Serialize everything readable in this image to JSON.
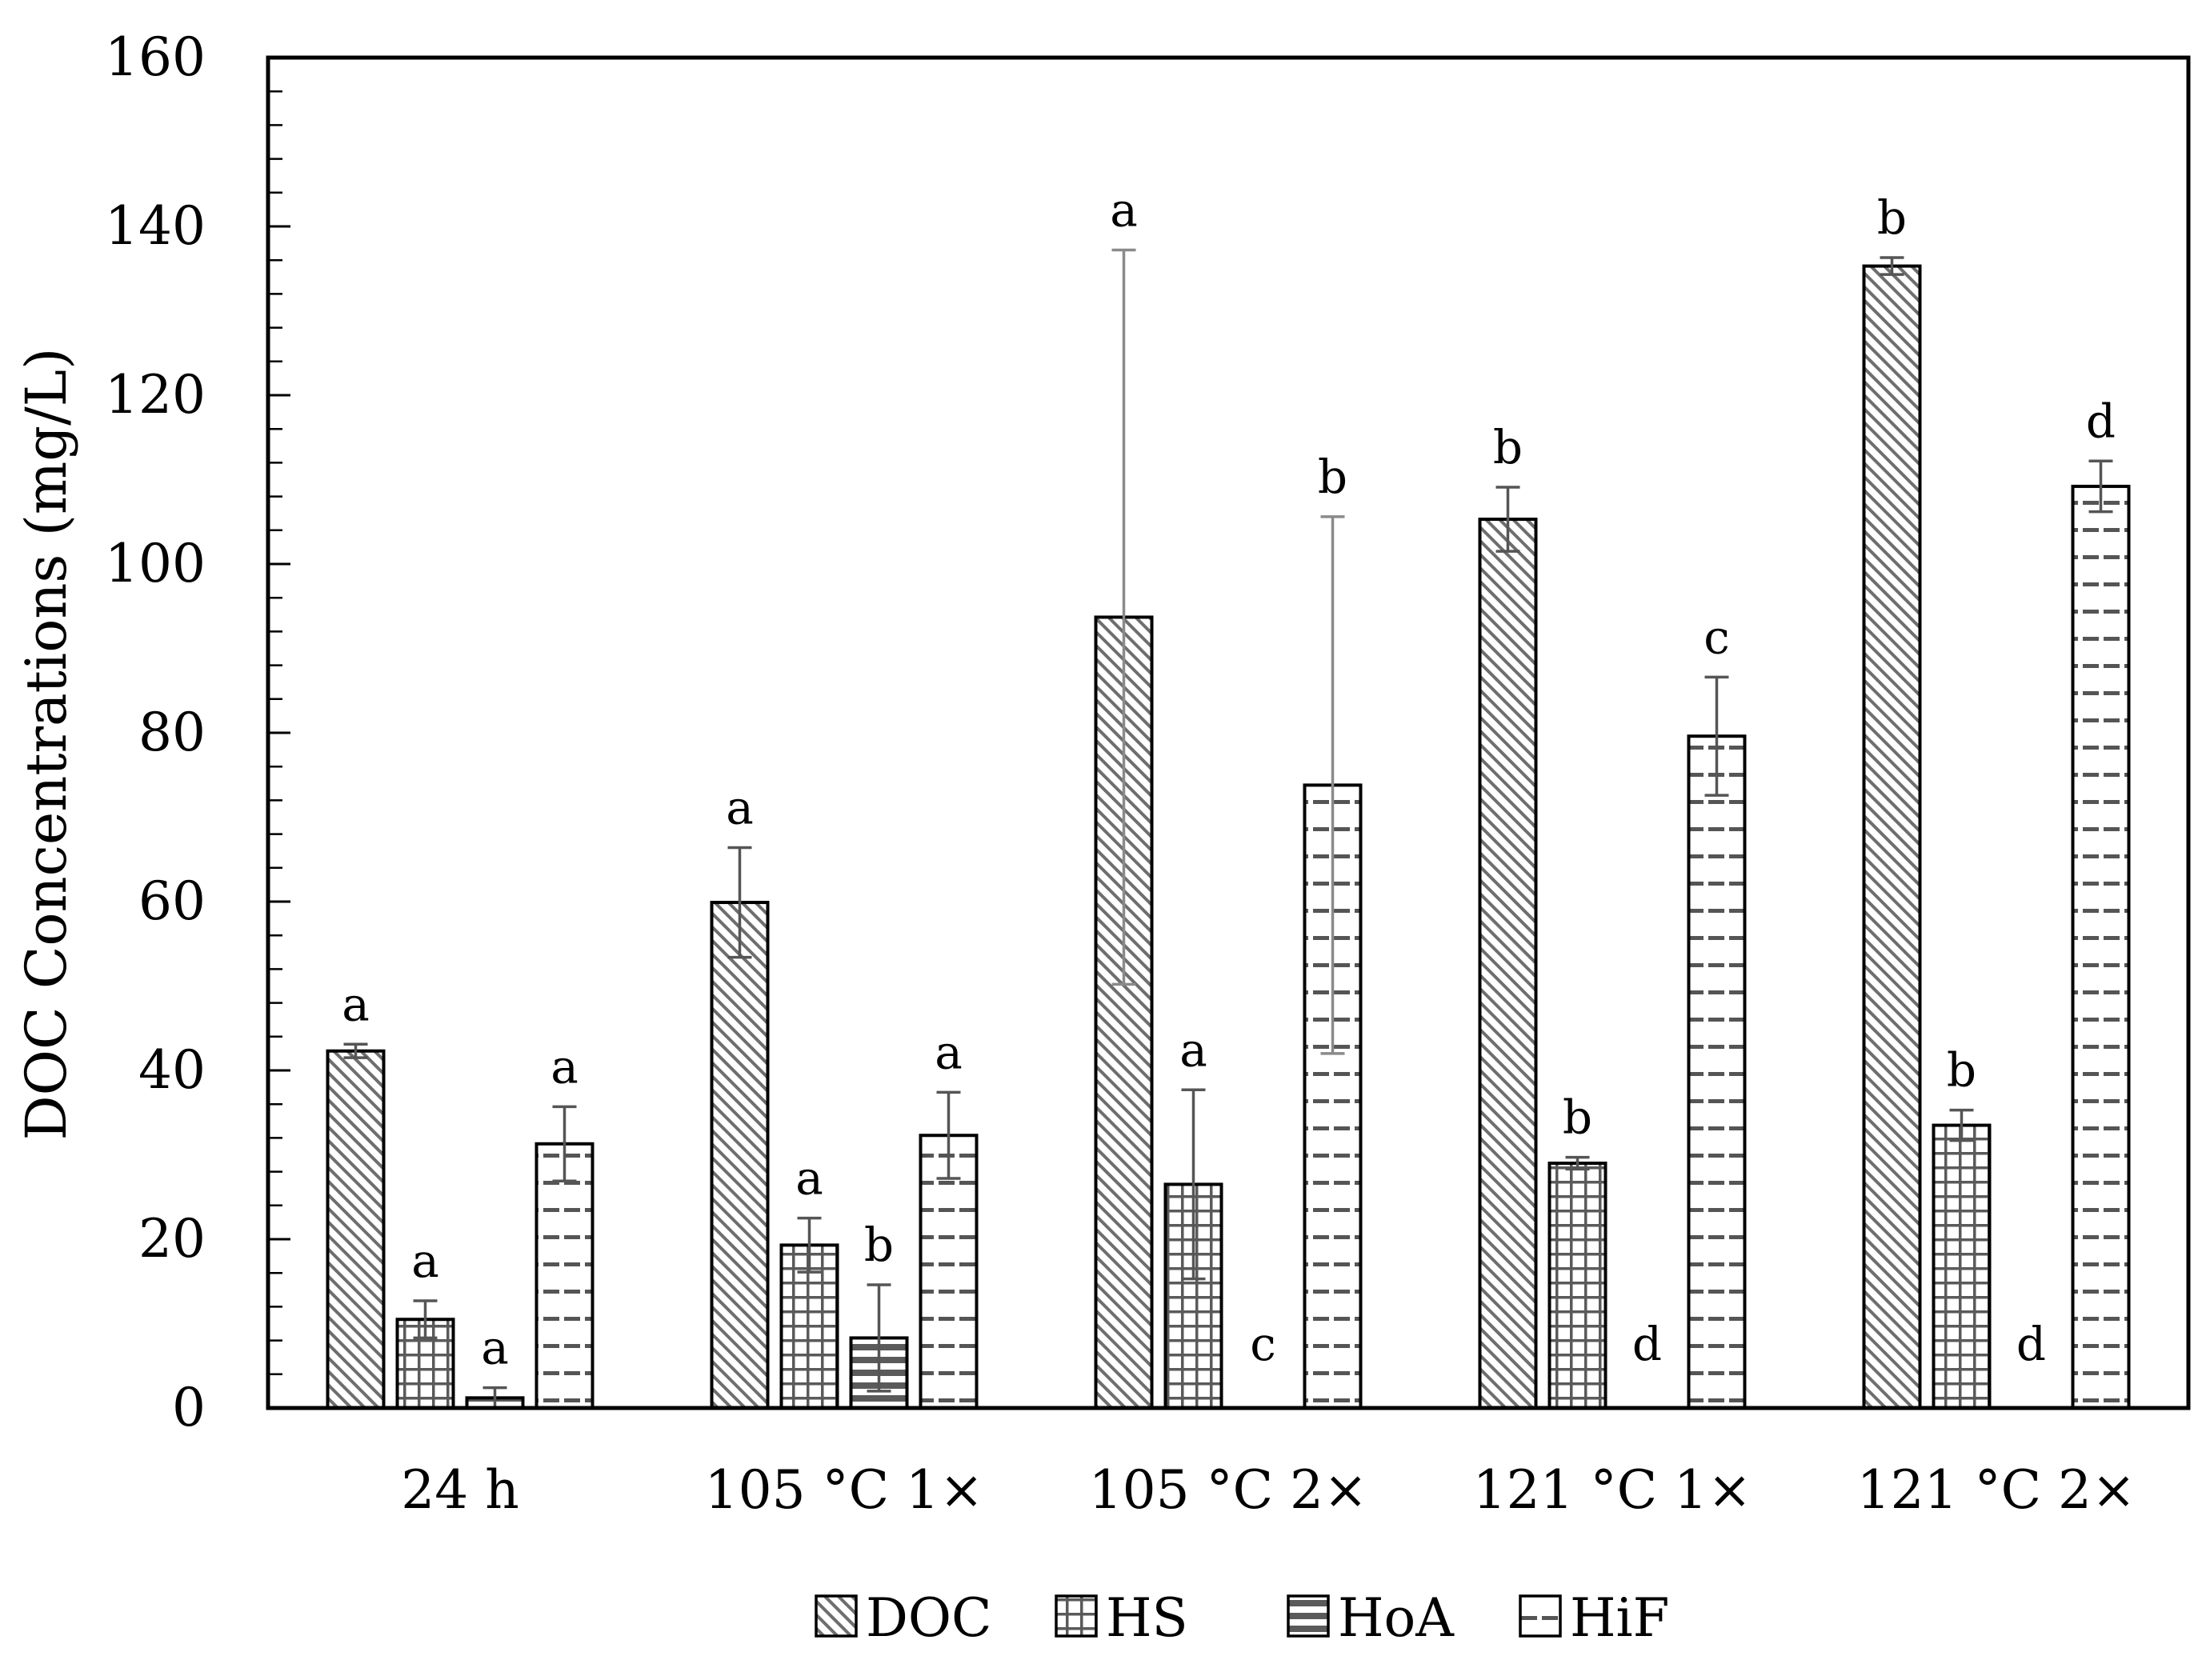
{
  "chart_data": {
    "type": "bar",
    "title": "",
    "xlabel": "",
    "ylabel": "DOC Concentrations (mg/L)",
    "ylim": [
      0,
      160
    ],
    "y_major_step": 20,
    "y_minor_step": 4,
    "grid": false,
    "legend_position": "bottom",
    "categories": [
      "24 h",
      "105 °C 1×",
      "105 °C 2×",
      "121 °C 1×",
      "121 °C 2×"
    ],
    "series": [
      {
        "name": "DOC",
        "pattern": "diagonal-hatch",
        "values": [
          42.3,
          59.9,
          93.7,
          105.3,
          135.3
        ],
        "errors": [
          0.8,
          6.5,
          43.5,
          3.8,
          1.0
        ],
        "letters": [
          "a",
          "a",
          "a",
          "b",
          "b"
        ]
      },
      {
        "name": "HS",
        "pattern": "grid",
        "values": [
          10.5,
          19.3,
          26.5,
          29.0,
          33.5
        ],
        "errors": [
          2.2,
          3.2,
          11.2,
          0.7,
          1.8
        ],
        "letters": [
          "a",
          "a",
          "a",
          "b",
          "b"
        ]
      },
      {
        "name": "HoA",
        "pattern": "horizontal-stripes",
        "values": [
          1.2,
          8.3,
          0,
          0,
          0
        ],
        "errors": [
          1.2,
          6.3,
          0,
          0,
          0
        ],
        "letters": [
          "a",
          "b",
          "c",
          "d",
          "d"
        ]
      },
      {
        "name": "HiF",
        "pattern": "dashes",
        "values": [
          31.3,
          32.3,
          73.8,
          79.6,
          109.2
        ],
        "errors": [
          4.4,
          5.1,
          31.8,
          7.0,
          3.0
        ],
        "letters": [
          "a",
          "a",
          "b",
          "c",
          "d"
        ]
      }
    ]
  }
}
